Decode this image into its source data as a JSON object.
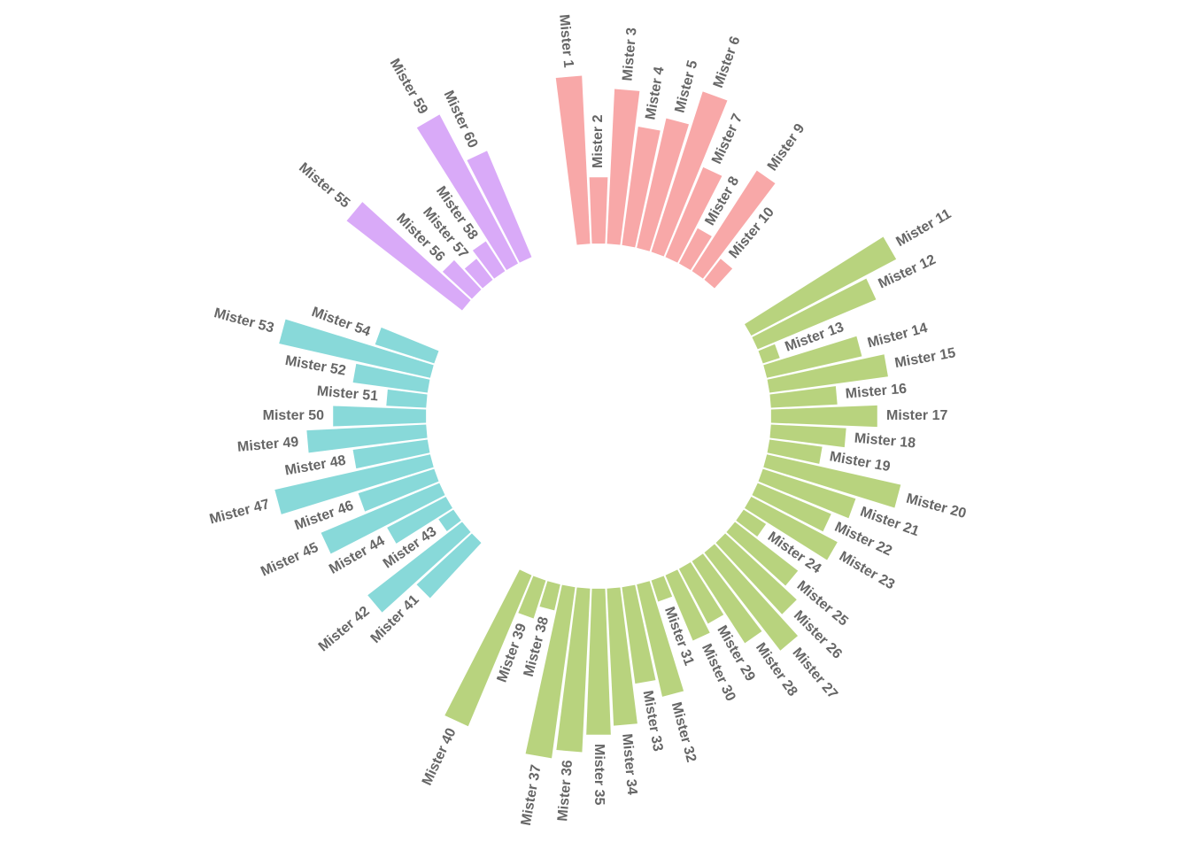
{
  "chart_data": {
    "type": "bar",
    "layout": "circular",
    "title": "",
    "xlabel": "",
    "ylabel": "",
    "colors": {
      "A": "#F8A8A8",
      "B": "#B8D37E",
      "C": "#88D9D9",
      "D": "#D9AAF8"
    },
    "groups": [
      "A",
      "B",
      "C",
      "D"
    ],
    "bars": [
      {
        "label": "Mister 1",
        "group": "A",
        "value": 38
      },
      {
        "label": "Mister 2",
        "group": "A",
        "value": 15
      },
      {
        "label": "Mister 3",
        "group": "A",
        "value": 35
      },
      {
        "label": "Mister 4",
        "group": "A",
        "value": 27
      },
      {
        "label": "Mister 5",
        "group": "A",
        "value": 30
      },
      {
        "label": "Mister 6",
        "group": "A",
        "value": 38
      },
      {
        "label": "Mister 7",
        "group": "A",
        "value": 22
      },
      {
        "label": "Mister 8",
        "group": "A",
        "value": 9
      },
      {
        "label": "Mister 9",
        "group": "A",
        "value": 27
      },
      {
        "label": "Mister 10",
        "group": "A",
        "value": 6
      },
      {
        "label": "Mister 11",
        "group": "B",
        "value": 37
      },
      {
        "label": "Mister 12",
        "group": "B",
        "value": 29
      },
      {
        "label": "Mister 13",
        "group": "B",
        "value": 4
      },
      {
        "label": "Mister 14",
        "group": "B",
        "value": 22
      },
      {
        "label": "Mister 15",
        "group": "B",
        "value": 27
      },
      {
        "label": "Mister 16",
        "group": "B",
        "value": 15
      },
      {
        "label": "Mister 17",
        "group": "B",
        "value": 24
      },
      {
        "label": "Mister 18",
        "group": "B",
        "value": 17
      },
      {
        "label": "Mister 19",
        "group": "B",
        "value": 12
      },
      {
        "label": "Mister 20",
        "group": "B",
        "value": 31
      },
      {
        "label": "Mister 21",
        "group": "B",
        "value": 22
      },
      {
        "label": "Mister 22",
        "group": "B",
        "value": 18
      },
      {
        "label": "Mister 23",
        "group": "B",
        "value": 22
      },
      {
        "label": "Mister 24",
        "group": "B",
        "value": 6
      },
      {
        "label": "Mister 25",
        "group": "B",
        "value": 18
      },
      {
        "label": "Mister 26",
        "group": "B",
        "value": 22
      },
      {
        "label": "Mister 27",
        "group": "B",
        "value": 28
      },
      {
        "label": "Mister 28",
        "group": "B",
        "value": 22
      },
      {
        "label": "Mister 29",
        "group": "B",
        "value": 14
      },
      {
        "label": "Mister 30",
        "group": "B",
        "value": 16
      },
      {
        "label": "Mister 31",
        "group": "B",
        "value": 5
      },
      {
        "label": "Mister 32",
        "group": "B",
        "value": 26
      },
      {
        "label": "Mister 33",
        "group": "B",
        "value": 22
      },
      {
        "label": "Mister 34",
        "group": "B",
        "value": 31
      },
      {
        "label": "Mister 35",
        "group": "B",
        "value": 33
      },
      {
        "label": "Mister 36",
        "group": "B",
        "value": 37
      },
      {
        "label": "Mister 37",
        "group": "B",
        "value": 39
      },
      {
        "label": "Mister 38",
        "group": "B",
        "value": 6
      },
      {
        "label": "Mister 39",
        "group": "B",
        "value": 9
      },
      {
        "label": "Mister 40",
        "group": "B",
        "value": 37
      },
      {
        "label": "Mister 41",
        "group": "C",
        "value": 17
      },
      {
        "label": "Mister 42",
        "group": "C",
        "value": 27
      },
      {
        "label": "Mister 43",
        "group": "C",
        "value": 4
      },
      {
        "label": "Mister 44",
        "group": "C",
        "value": 15
      },
      {
        "label": "Mister 45",
        "group": "C",
        "value": 29
      },
      {
        "label": "Mister 46",
        "group": "C",
        "value": 18
      },
      {
        "label": "Mister 47",
        "group": "C",
        "value": 36
      },
      {
        "label": "Mister 48",
        "group": "C",
        "value": 17
      },
      {
        "label": "Mister 49",
        "group": "C",
        "value": 27
      },
      {
        "label": "Mister 50",
        "group": "C",
        "value": 21
      },
      {
        "label": "Mister 51",
        "group": "C",
        "value": 9
      },
      {
        "label": "Mister 52",
        "group": "C",
        "value": 17
      },
      {
        "label": "Mister 53",
        "group": "C",
        "value": 35
      },
      {
        "label": "Mister 54",
        "group": "C",
        "value": 14
      },
      {
        "label": "Mister 55",
        "group": "D",
        "value": 33
      },
      {
        "label": "Mister 56",
        "group": "D",
        "value": 9
      },
      {
        "label": "Mister 57",
        "group": "D",
        "value": 6
      },
      {
        "label": "Mister 58",
        "group": "D",
        "value": 8
      },
      {
        "label": "Mister 59",
        "group": "D",
        "value": 38
      },
      {
        "label": "Mister 60",
        "group": "D",
        "value": 26
      }
    ]
  }
}
